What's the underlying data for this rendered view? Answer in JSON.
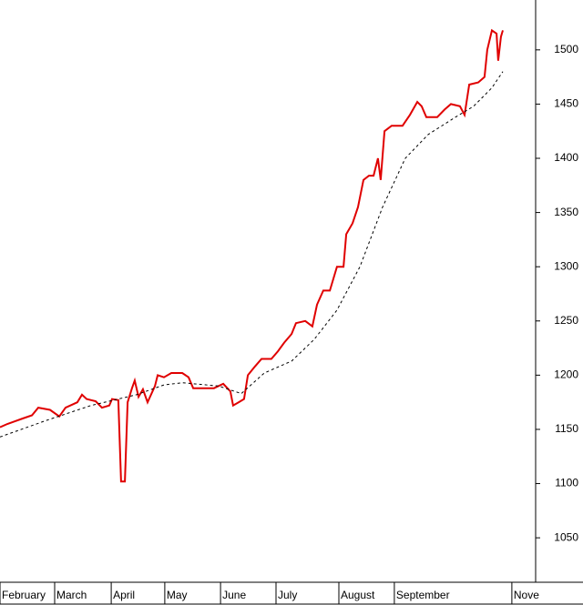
{
  "chart_data": {
    "type": "line",
    "xlim": [
      0,
      196
    ],
    "ylim": [
      1009,
      1546
    ],
    "yticks": [
      1050,
      1100,
      1150,
      1200,
      1250,
      1300,
      1350,
      1400,
      1450,
      1500
    ],
    "xticks": [
      {
        "value": 0,
        "label": "February"
      },
      {
        "value": 20,
        "label": "March"
      },
      {
        "value": 40.7,
        "label": "April"
      },
      {
        "value": 60.3,
        "label": "May"
      },
      {
        "value": 80.7,
        "label": "June"
      },
      {
        "value": 101,
        "label": "July"
      },
      {
        "value": 124,
        "label": "August"
      },
      {
        "value": 144.3,
        "label": "September"
      },
      {
        "value": 187.3,
        "label": "Nove"
      }
    ],
    "grid": false,
    "series": [
      {
        "color": "#e00000",
        "style": "solid",
        "x": [
          0,
          2.7,
          5,
          8.3,
          11.7,
          14,
          18.3,
          21.7,
          24,
          28.3,
          30,
          31.7,
          35,
          37.3,
          40,
          41,
          43.3,
          44.3,
          45.7,
          46.7,
          48.3,
          49.3,
          50.7,
          52.3,
          54,
          56.7,
          57.7,
          60,
          62.7,
          66.7,
          69,
          70.7,
          75,
          78.3,
          81.7,
          84.3,
          85.3,
          87.3,
          89.3,
          90.7,
          93.3,
          95.7,
          99.3,
          101.7,
          104,
          106.7,
          108.3,
          111.7,
          114.3,
          116,
          118.3,
          120.7,
          123.3,
          125.7,
          126.7,
          129,
          131,
          133,
          135,
          136.7,
          138.3,
          139.3,
          140.7,
          143.3,
          147.3,
          150,
          152.7,
          154.3,
          156,
          160,
          162.7,
          165,
          168.3,
          170,
          171.7,
          175,
          177.3,
          178.3,
          180,
          181.7,
          182.3,
          183.3,
          184
        ],
        "values": [
          1152,
          1155,
          1157,
          1160,
          1163,
          1170,
          1168,
          1162,
          1170,
          1175,
          1182,
          1178,
          1176,
          1170,
          1172,
          1178,
          1177,
          1102,
          1102,
          1175,
          1188,
          1195,
          1180,
          1187,
          1175,
          1190,
          1200,
          1198,
          1202,
          1202,
          1198,
          1188,
          1188,
          1188,
          1192,
          1185,
          1172,
          1175,
          1178,
          1200,
          1208,
          1215,
          1215,
          1222,
          1230,
          1238,
          1248,
          1250,
          1245,
          1265,
          1278,
          1278,
          1300,
          1300,
          1330,
          1340,
          1355,
          1380,
          1384,
          1384,
          1400,
          1380,
          1425,
          1430,
          1430,
          1440,
          1452,
          1448,
          1438,
          1438,
          1445,
          1450,
          1448,
          1440,
          1468,
          1470,
          1475,
          1500,
          1518,
          1515,
          1490,
          1512,
          1518
        ]
      },
      {
        "color": "#000000",
        "style": "dashed",
        "x": [
          0,
          16.7,
          33.3,
          43.3,
          50,
          60,
          66.7,
          80,
          88.3,
          96.7,
          106.7,
          115,
          123.3,
          131.7,
          140,
          148.3,
          156.7,
          166.7,
          173.3,
          180,
          184
        ],
        "values": [
          1143,
          1158,
          1172,
          1178,
          1182,
          1191,
          1193,
          1190,
          1183,
          1202,
          1213,
          1233,
          1260,
          1300,
          1355,
          1400,
          1422,
          1438,
          1448,
          1465,
          1480
        ]
      }
    ]
  }
}
